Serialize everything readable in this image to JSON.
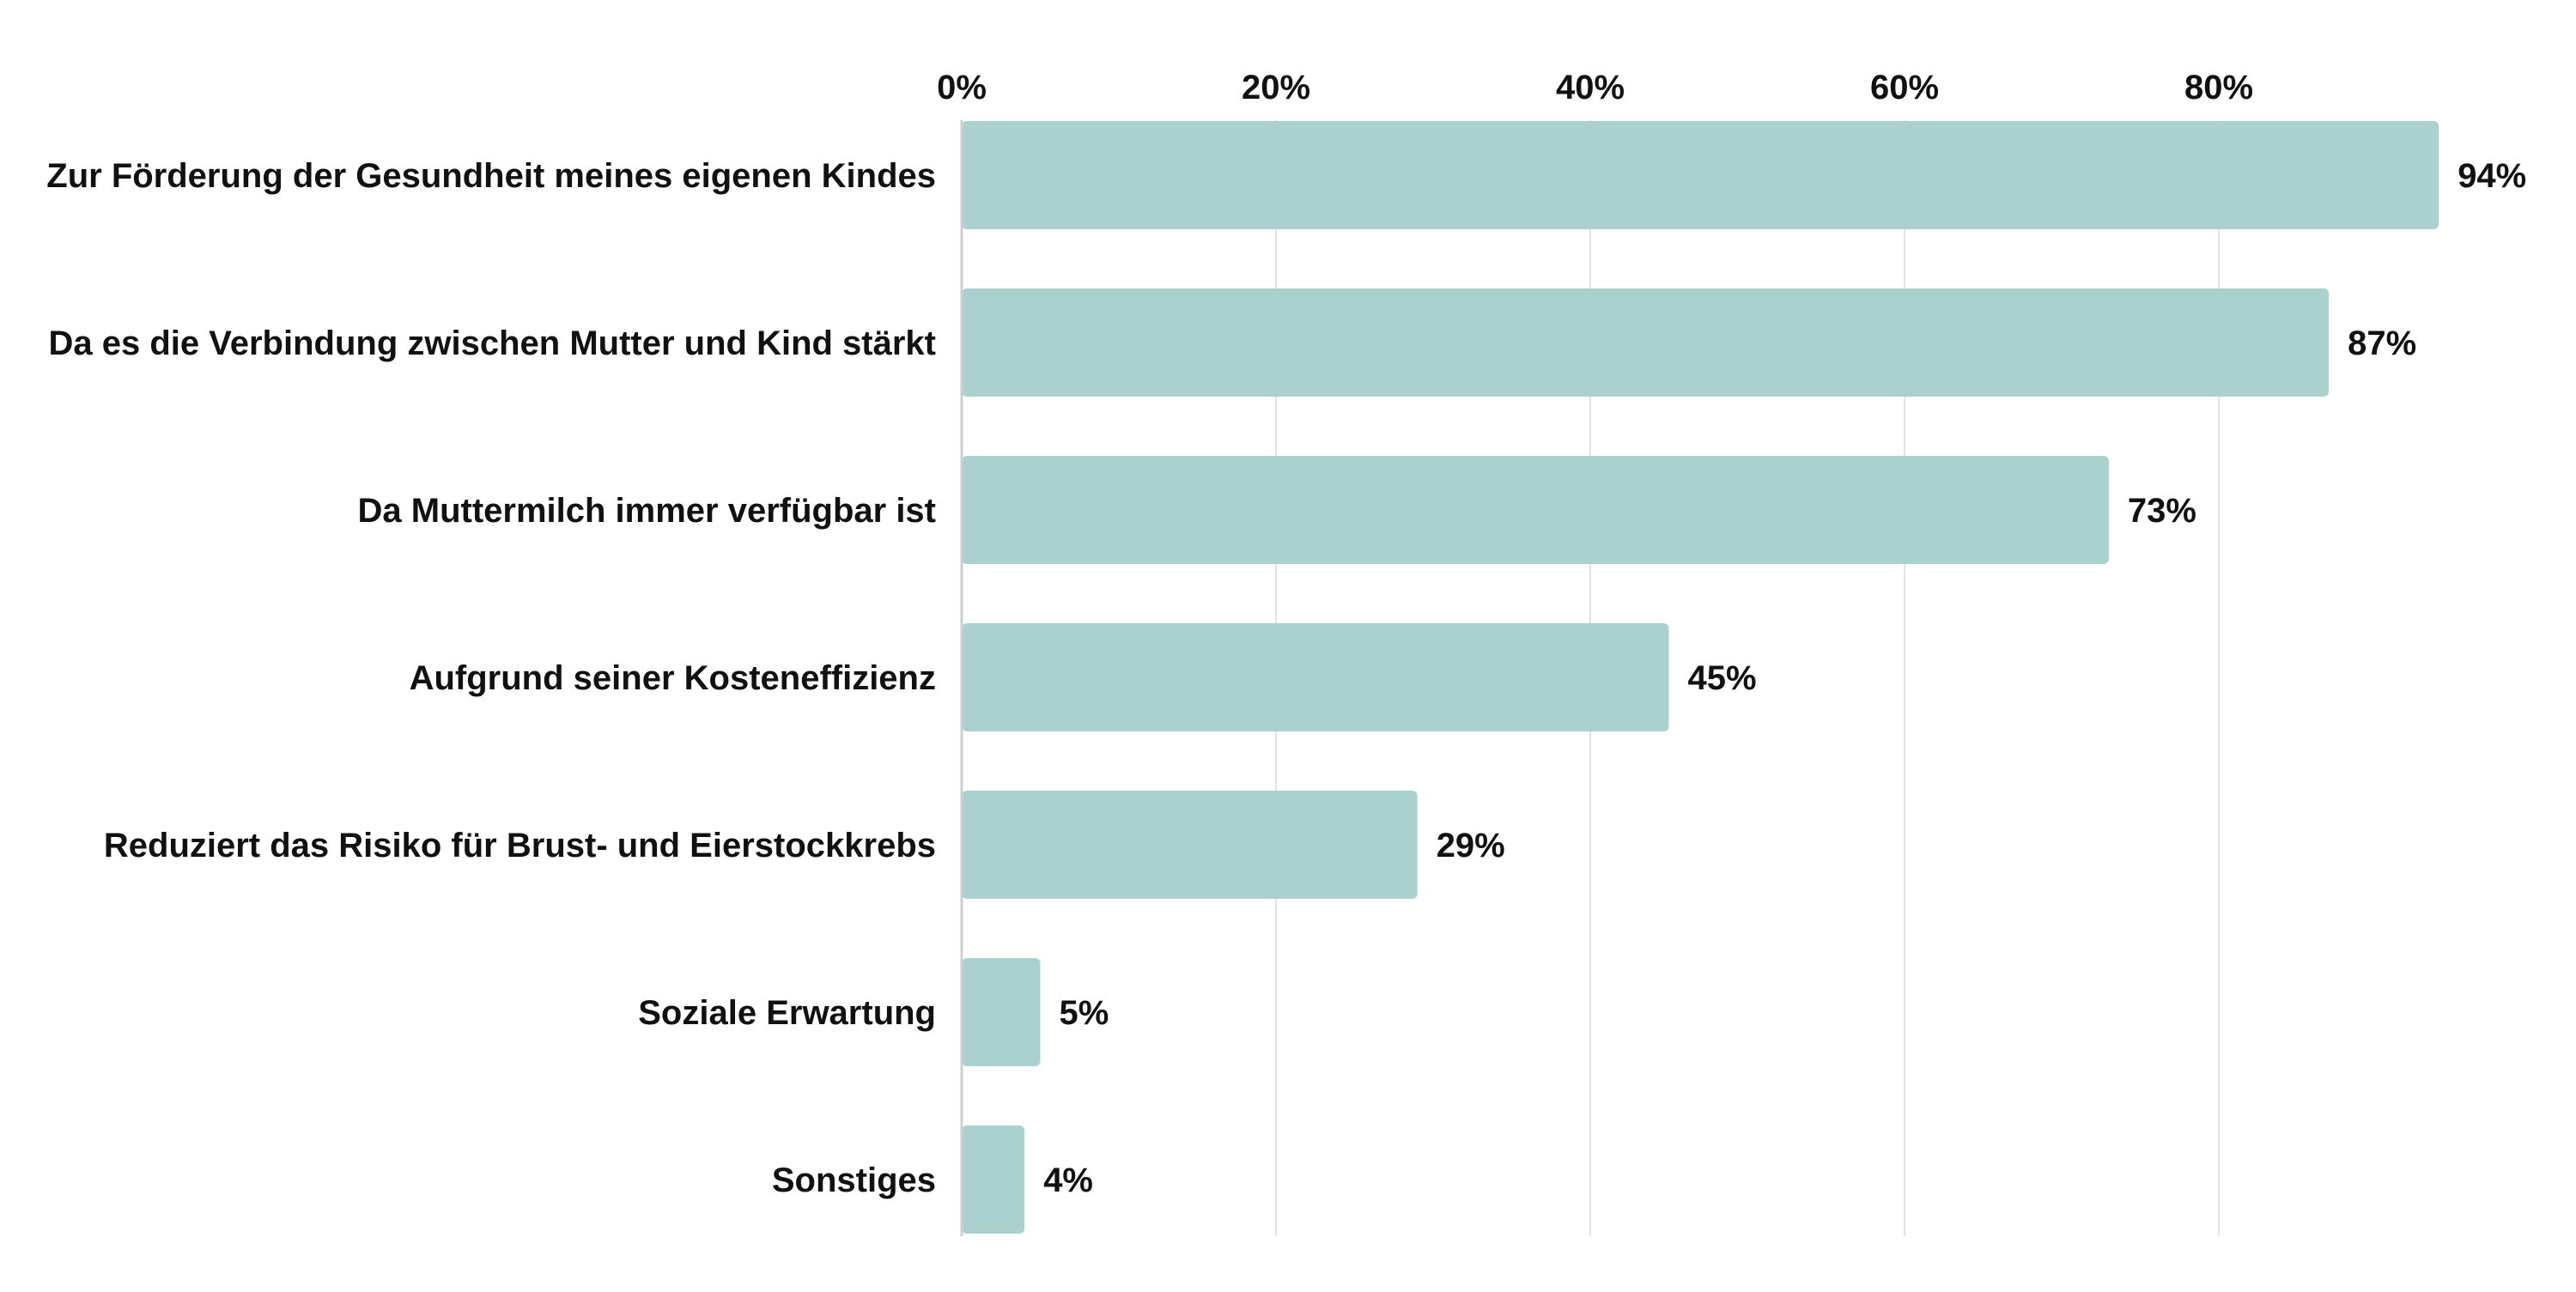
{
  "chart_data": {
    "type": "bar",
    "orientation": "horizontal",
    "title": "",
    "xlabel": "",
    "ylabel": "",
    "categories": [
      "Zur Förderung der Gesundheit meines eigenen Kindes",
      "Da es die Verbindung zwischen Mutter und Kind stärkt",
      "Da Muttermilch immer verfügbar ist",
      "Aufgrund seiner Kosteneffizienz",
      "Reduziert das Risiko für Brust- und Eierstockkrebs",
      "Soziale Erwartung",
      "Sonstiges"
    ],
    "values": [
      94,
      87,
      73,
      45,
      29,
      5,
      4
    ],
    "value_labels": [
      "94%",
      "87%",
      "73%",
      "45%",
      "29%",
      "5%",
      "4%"
    ],
    "xlim": [
      0,
      100
    ],
    "x_ticks": [
      0,
      20,
      40,
      60,
      80
    ],
    "x_tick_labels": [
      "0%",
      "20%",
      "40%",
      "60%",
      "80%"
    ],
    "x_axis_position": "top",
    "grid": true,
    "legend": "none",
    "colors": {
      "bar": "#abd1ce",
      "grid": "#e3e3e3",
      "axis": "#cfcfcf",
      "text": "#111111"
    }
  }
}
